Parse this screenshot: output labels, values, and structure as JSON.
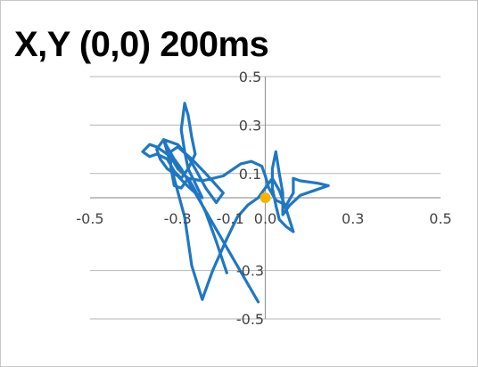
{
  "chart_data": {
    "type": "scatter",
    "title": "X,Y (0,0) 200ms",
    "xlabel": "",
    "ylabel": "",
    "xlim": [
      -0.5,
      0.5
    ],
    "ylim": [
      -0.5,
      0.5
    ],
    "x_ticks": [
      "-0.5",
      "-0.3",
      "-0.1",
      "0.0",
      "0.3",
      "0.5"
    ],
    "x_tick_values": [
      -0.5,
      -0.25,
      -0.1,
      0.0,
      0.25,
      0.5
    ],
    "y_ticks": [
      "0.5",
      "0.3",
      "0.1",
      "-0.3",
      "-0.5"
    ],
    "y_tick_values": [
      0.5,
      0.3,
      0.1,
      -0.3,
      -0.5
    ],
    "grid": "horizontal",
    "series": [
      {
        "style": "line",
        "color": "#1f77c3",
        "points": [
          [
            -0.02,
            -0.43
          ],
          [
            -0.12,
            -0.18
          ],
          [
            -0.2,
            0.02
          ],
          [
            -0.24,
            0.12
          ],
          [
            -0.26,
            0.16
          ],
          [
            -0.28,
            0.21
          ],
          [
            -0.29,
            0.24
          ],
          [
            -0.31,
            0.2
          ],
          [
            -0.3,
            0.16
          ],
          [
            -0.28,
            0.12
          ],
          [
            -0.25,
            0.09
          ],
          [
            -0.23,
            0.06
          ],
          [
            -0.2,
            0.02
          ],
          [
            -0.18,
            0.0
          ],
          [
            -0.2,
            0.06
          ],
          [
            -0.22,
            0.12
          ],
          [
            -0.23,
            0.19
          ],
          [
            -0.24,
            0.28
          ],
          [
            -0.23,
            0.39
          ],
          [
            -0.22,
            0.34
          ],
          [
            -0.21,
            0.25
          ],
          [
            -0.2,
            0.18
          ],
          [
            -0.22,
            0.12
          ],
          [
            -0.24,
            0.08
          ],
          [
            -0.26,
            0.11
          ],
          [
            -0.28,
            0.16
          ],
          [
            -0.31,
            0.18
          ],
          [
            -0.33,
            0.17
          ],
          [
            -0.35,
            0.19
          ],
          [
            -0.33,
            0.22
          ],
          [
            -0.31,
            0.21
          ],
          [
            -0.29,
            0.19
          ],
          [
            -0.27,
            0.17
          ],
          [
            -0.25,
            0.12
          ],
          [
            -0.22,
            0.08
          ],
          [
            -0.18,
            0.07
          ],
          [
            -0.12,
            0.09
          ],
          [
            -0.07,
            0.14
          ],
          [
            -0.04,
            0.15
          ],
          [
            -0.01,
            0.13
          ],
          [
            0.0,
            0.09
          ],
          [
            0.01,
            0.04
          ],
          [
            0.03,
            -0.01
          ],
          [
            0.06,
            -0.03
          ],
          [
            0.08,
            0.02
          ],
          [
            0.08,
            0.08
          ],
          [
            0.1,
            0.07
          ],
          [
            0.15,
            0.06
          ],
          [
            0.18,
            0.05
          ],
          [
            0.14,
            0.03
          ],
          [
            0.1,
            0.01
          ],
          [
            0.07,
            -0.03
          ],
          [
            0.05,
            -0.07
          ],
          [
            0.05,
            0.02
          ],
          [
            0.04,
            0.1
          ],
          [
            0.03,
            0.19
          ],
          [
            0.02,
            0.12
          ],
          [
            0.02,
            0.04
          ],
          [
            0.03,
            -0.03
          ],
          [
            0.04,
            -0.09
          ],
          [
            0.06,
            -0.12
          ],
          [
            0.08,
            -0.14
          ],
          [
            0.06,
            -0.05
          ],
          [
            0.04,
            0.03
          ],
          [
            0.02,
            0.08
          ],
          [
            0.0,
            0.04
          ],
          [
            -0.02,
            0.0
          ],
          [
            -0.05,
            -0.03
          ],
          [
            -0.08,
            -0.08
          ],
          [
            -0.11,
            -0.17
          ],
          [
            -0.15,
            -0.3
          ],
          [
            -0.18,
            -0.42
          ],
          [
            -0.21,
            -0.28
          ],
          [
            -0.23,
            -0.08
          ],
          [
            -0.26,
            0.08
          ],
          [
            -0.28,
            0.19
          ],
          [
            -0.29,
            0.24
          ],
          [
            -0.25,
            0.22
          ],
          [
            -0.22,
            0.17
          ],
          [
            -0.2,
            0.12
          ],
          [
            -0.17,
            0.04
          ],
          [
            -0.14,
            -0.02
          ],
          [
            -0.12,
            0.02
          ],
          [
            -0.17,
            0.1
          ],
          [
            -0.21,
            0.16
          ],
          [
            -0.25,
            0.21
          ],
          [
            -0.27,
            0.19
          ],
          [
            -0.27,
            0.13
          ],
          [
            -0.26,
            0.05
          ],
          [
            -0.24,
            0.04
          ],
          [
            -0.22,
            0.08
          ],
          [
            -0.2,
            0.03
          ],
          [
            -0.17,
            -0.06
          ],
          [
            -0.14,
            -0.18
          ],
          [
            -0.11,
            -0.31
          ]
        ]
      }
    ],
    "marker": {
      "x": 0.0,
      "y": 0.0,
      "color": "#f5b400"
    }
  }
}
